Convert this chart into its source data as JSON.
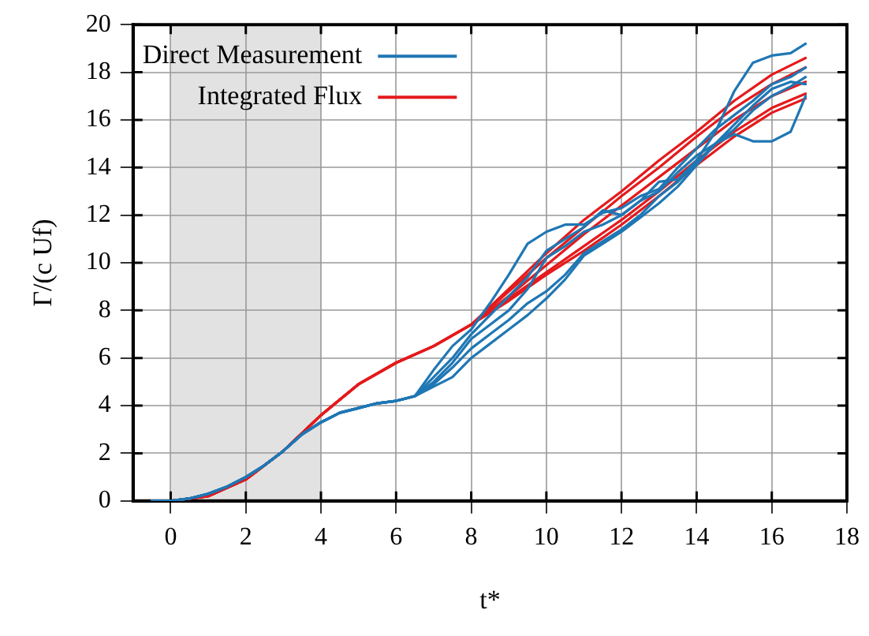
{
  "chart_data": {
    "type": "line",
    "xlabel": "t*",
    "ylabel": "Γ/(c Uf)",
    "xlim": [
      -1,
      18
    ],
    "xticks": [
      0,
      2,
      4,
      6,
      8,
      10,
      12,
      14,
      16,
      18
    ],
    "ylim": [
      0,
      20
    ],
    "yticks": [
      0,
      2,
      4,
      6,
      8,
      10,
      12,
      14,
      16,
      18,
      20
    ],
    "grid": true,
    "legend": "top left",
    "marker": "none",
    "line_style": "solid",
    "bands": [
      {
        "axis": "x",
        "from": 0,
        "to": 4,
        "color": "#e2e2e2"
      }
    ],
    "series": [
      {
        "name": "Direct Measurement",
        "color": "#1f77b4",
        "x": [
          -0.5,
          0,
          0.5,
          1,
          1.5,
          2,
          2.5,
          3,
          3.5,
          4,
          4.5,
          5,
          5.5,
          6,
          6.5,
          7,
          7.5,
          8,
          8.5,
          9,
          9.5,
          10,
          10.5,
          11,
          11.5,
          12,
          12.5,
          13,
          13.5,
          14,
          14.5,
          15,
          15.5,
          16,
          16.5,
          16.9
        ],
        "values": [
          0,
          0,
          0.1,
          0.3,
          0.6,
          1.0,
          1.5,
          2.1,
          2.8,
          3.3,
          3.7,
          3.9,
          4.1,
          4.2,
          4.4,
          5.5,
          6.5,
          7.2,
          8.3,
          9.5,
          10.8,
          11.3,
          11.6,
          11.6,
          12.1,
          12.3,
          12.8,
          13.1,
          14.0,
          14.8,
          15.6,
          16.2,
          16.8,
          17.5,
          17.8,
          18.2
        ]
      },
      {
        "color": "#1f77b4",
        "x": [
          -0.5,
          0,
          0.5,
          1,
          1.5,
          2,
          2.5,
          3,
          3.5,
          4,
          4.5,
          5,
          5.5,
          6,
          6.5,
          7,
          7.5,
          8,
          8.5,
          9,
          9.5,
          10,
          10.5,
          11,
          11.5,
          12,
          12.5,
          13,
          13.5,
          14,
          14.5,
          15,
          15.5,
          16,
          16.5,
          16.9
        ],
        "values": [
          0,
          0,
          0.1,
          0.3,
          0.6,
          1.0,
          1.5,
          2.1,
          2.8,
          3.3,
          3.7,
          3.9,
          4.1,
          4.2,
          4.4,
          5.2,
          6.0,
          7.0,
          7.8,
          8.6,
          9.4,
          10.5,
          11.0,
          11.5,
          12.2,
          12.0,
          12.6,
          13.4,
          13.5,
          14.3,
          15.5,
          17.2,
          18.4,
          18.7,
          18.8,
          19.2
        ]
      },
      {
        "color": "#1f77b4",
        "x": [
          -0.5,
          0,
          0.5,
          1,
          1.5,
          2,
          2.5,
          3,
          3.5,
          4,
          4.5,
          5,
          5.5,
          6,
          6.5,
          7,
          7.5,
          8,
          8.5,
          9,
          9.5,
          10,
          10.5,
          11,
          11.5,
          12,
          12.5,
          13,
          13.5,
          14,
          14.5,
          15,
          15.5,
          16,
          16.5,
          16.9
        ],
        "values": [
          0,
          0,
          0.1,
          0.3,
          0.6,
          1.0,
          1.5,
          2.1,
          2.8,
          3.3,
          3.7,
          3.9,
          4.1,
          4.2,
          4.4,
          4.9,
          5.6,
          6.4,
          7.0,
          7.6,
          8.3,
          8.8,
          9.5,
          10.4,
          10.9,
          11.4,
          12.0,
          12.8,
          13.4,
          14.2,
          15.0,
          15.4,
          15.1,
          15.1,
          15.5,
          17.0
        ]
      },
      {
        "color": "#1f77b4",
        "x": [
          -0.5,
          0,
          0.5,
          1,
          1.5,
          2,
          2.5,
          3,
          3.5,
          4,
          4.5,
          5,
          5.5,
          6,
          6.5,
          7,
          7.5,
          8,
          8.5,
          9,
          9.5,
          10,
          10.5,
          11,
          11.5,
          12,
          12.5,
          13,
          13.5,
          14,
          14.5,
          15,
          15.5,
          16,
          16.5,
          16.9
        ],
        "values": [
          0,
          0,
          0.1,
          0.3,
          0.6,
          1.0,
          1.5,
          2.1,
          2.8,
          3.3,
          3.7,
          3.9,
          4.1,
          4.2,
          4.4,
          4.8,
          5.2,
          6.0,
          6.6,
          7.2,
          7.8,
          8.5,
          9.3,
          10.3,
          10.8,
          11.3,
          11.9,
          12.5,
          13.2,
          14.1,
          15.0,
          15.6,
          16.4,
          17.0,
          17.4,
          17.8
        ]
      },
      {
        "color": "#1f77b4",
        "x": [
          -0.5,
          0,
          0.5,
          1,
          1.5,
          2,
          2.5,
          3,
          3.5,
          4,
          4.5,
          5,
          5.5,
          6,
          6.5,
          7,
          7.5,
          8,
          8.5,
          9,
          9.5,
          10,
          10.5,
          11,
          11.5,
          12,
          12.5,
          13,
          13.5,
          14,
          14.5,
          15,
          15.5,
          16,
          16.5,
          16.9
        ],
        "values": [
          0,
          0,
          0.1,
          0.3,
          0.6,
          1.0,
          1.5,
          2.1,
          2.8,
          3.3,
          3.7,
          3.9,
          4.1,
          4.2,
          4.4,
          5.0,
          5.8,
          6.8,
          7.4,
          8.0,
          8.9,
          10.2,
          10.7,
          11.3,
          11.6,
          12.0,
          12.6,
          13.0,
          13.8,
          14.5,
          15.0,
          15.8,
          16.6,
          17.3,
          17.6,
          17.5
        ]
      },
      {
        "name": "Integrated Flux",
        "color": "#e41a1c",
        "x": [
          -0.5,
          0,
          1,
          2,
          3,
          4,
          5,
          6,
          7,
          8,
          9,
          10,
          11,
          12,
          13,
          14,
          15,
          16,
          16.9
        ],
        "values": [
          0,
          0,
          0.2,
          0.9,
          2.1,
          3.6,
          4.9,
          5.8,
          6.5,
          7.4,
          8.9,
          10.4,
          11.8,
          13.0,
          14.3,
          15.5,
          16.8,
          17.9,
          18.6
        ]
      },
      {
        "color": "#e41a1c",
        "x": [
          -0.5,
          0,
          1,
          2,
          3,
          4,
          5,
          6,
          7,
          8,
          9,
          10,
          11,
          12,
          13,
          14,
          15,
          16,
          16.9
        ],
        "values": [
          0,
          0,
          0.2,
          0.9,
          2.1,
          3.6,
          4.9,
          5.8,
          6.5,
          7.4,
          8.8,
          10.2,
          11.5,
          12.8,
          14.0,
          15.3,
          16.5,
          17.5,
          18.2
        ]
      },
      {
        "color": "#e41a1c",
        "x": [
          -0.5,
          0,
          1,
          2,
          3,
          4,
          5,
          6,
          7,
          8,
          9,
          10,
          11,
          12,
          13,
          14,
          15,
          16,
          16.9
        ],
        "values": [
          0,
          0,
          0.2,
          0.9,
          2.1,
          3.6,
          4.9,
          5.8,
          6.5,
          7.4,
          8.6,
          9.9,
          11.2,
          12.4,
          13.6,
          14.8,
          16.0,
          17.0,
          17.6
        ]
      },
      {
        "color": "#e41a1c",
        "x": [
          -0.5,
          0,
          1,
          2,
          3,
          4,
          5,
          6,
          7,
          8,
          9,
          10,
          11,
          12,
          13,
          14,
          15,
          16,
          16.9
        ],
        "values": [
          0,
          0,
          0.2,
          0.9,
          2.1,
          3.6,
          4.9,
          5.8,
          6.5,
          7.4,
          8.5,
          9.6,
          10.7,
          11.8,
          13.0,
          14.3,
          15.5,
          16.5,
          17.1
        ]
      },
      {
        "color": "#e41a1c",
        "x": [
          -0.5,
          0,
          1,
          2,
          3,
          4,
          5,
          6,
          7,
          8,
          9,
          10,
          11,
          12,
          13,
          14,
          15,
          16,
          16.9
        ],
        "values": [
          0,
          0,
          0.2,
          0.9,
          2.1,
          3.6,
          4.9,
          5.8,
          6.5,
          7.4,
          8.4,
          9.5,
          10.5,
          11.6,
          12.8,
          14.1,
          15.3,
          16.3,
          16.9
        ]
      }
    ]
  }
}
